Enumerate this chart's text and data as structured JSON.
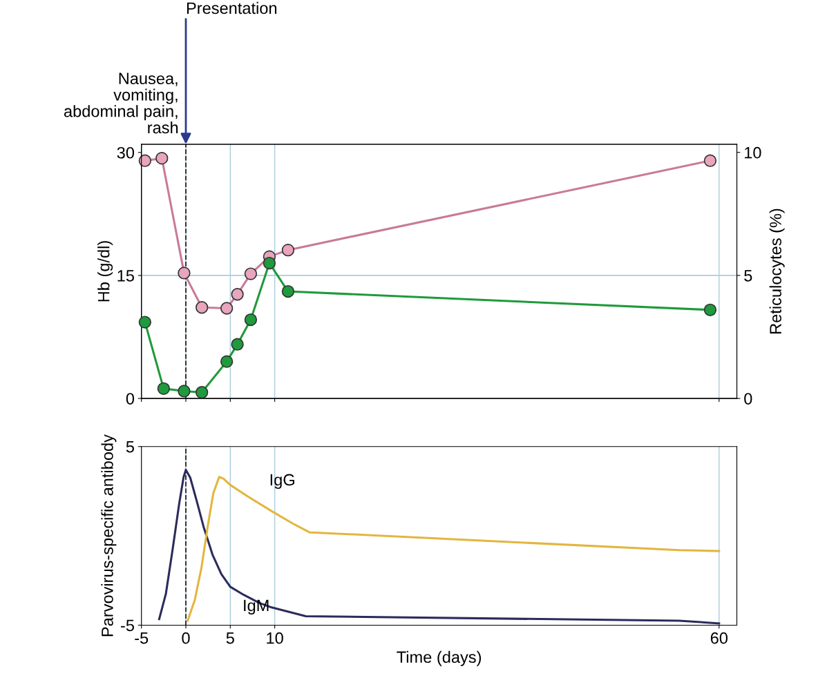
{
  "chart_data": [
    {
      "type": "line",
      "ylabel": "Hb (g/dl)",
      "y2label": "Reticulocytes (%)",
      "xlim": [
        -5,
        62
      ],
      "xticks": [
        -5,
        0,
        5,
        10,
        60
      ],
      "ylim": [
        0,
        31
      ],
      "yticks": [
        0,
        15,
        30
      ],
      "y2lim": [
        0,
        10.33
      ],
      "y2ticks": [
        0,
        5,
        10
      ],
      "grid": "x",
      "marker": "circle",
      "tick_labels": "y",
      "ref_lines": [
        {
          "axis": "x",
          "value": 0,
          "line_style": "dashed",
          "color": "#222222"
        },
        {
          "axis": "y",
          "value": 15,
          "color": "#a9cce0"
        }
      ],
      "annotations": [
        "Nausea, vomiting, abdominal pain, rash",
        "Presentation"
      ],
      "series": [
        {
          "color": "#c97a98",
          "x": [
            -4.6,
            -2.7,
            -0.2,
            1.8,
            4.6,
            5.8,
            7.3,
            9.4,
            11.5,
            59
          ],
          "values": [
            29.0,
            29.3,
            15.3,
            11.1,
            11.0,
            12.7,
            15.2,
            17.3,
            18.1,
            29.0
          ]
        },
        {
          "color": "#1f9a3c",
          "axis": "y2",
          "x": [
            -4.6,
            -2.5,
            -0.2,
            1.8,
            4.6,
            5.8,
            7.3,
            9.4,
            11.5,
            59
          ],
          "values": [
            3.1,
            0.4,
            0.3,
            0.25,
            1.5,
            2.2,
            3.2,
            5.5,
            4.35,
            3.6
          ]
        }
      ]
    },
    {
      "type": "line",
      "ylabel": "Parvovirus-specific antibody",
      "xlabel": "Time (days)",
      "xlim": [
        -5,
        62
      ],
      "xticks": [
        -5,
        0,
        5,
        10,
        60
      ],
      "ylim": [
        -5,
        5
      ],
      "yticks": [
        -5,
        5
      ],
      "grid": "x",
      "ref_lines": [
        {
          "axis": "x",
          "value": 0,
          "line_style": "dashed",
          "color": "#222222"
        }
      ],
      "series": [
        {
          "name": "IgM",
          "color": "#2b2b5c",
          "x": [
            -3,
            -2.25,
            -1.5,
            -0.75,
            -0.25,
            0,
            0.5,
            1.25,
            2,
            3,
            4,
            5,
            6.5,
            8.25,
            9.6,
            13.5,
            55.5,
            60
          ],
          "values": [
            -4.66,
            -3.25,
            -0.8,
            1.8,
            3.3,
            3.7,
            3.25,
            1.9,
            0.5,
            -1.05,
            -2.15,
            -2.85,
            -3.3,
            -3.75,
            -4.0,
            -4.5,
            -4.75,
            -4.9
          ]
        },
        {
          "name": "IgG",
          "color": "#e2b63e",
          "x": [
            0.2,
            1,
            1.75,
            2.5,
            3.1,
            3.75,
            4.25,
            5,
            7,
            9.6,
            12,
            13.9,
            55.5,
            60
          ],
          "values": [
            -4.75,
            -3.6,
            -1.8,
            0.65,
            2.4,
            3.3,
            3.2,
            2.85,
            2.2,
            1.4,
            0.7,
            0.2,
            -0.8,
            -0.85
          ]
        }
      ]
    }
  ]
}
